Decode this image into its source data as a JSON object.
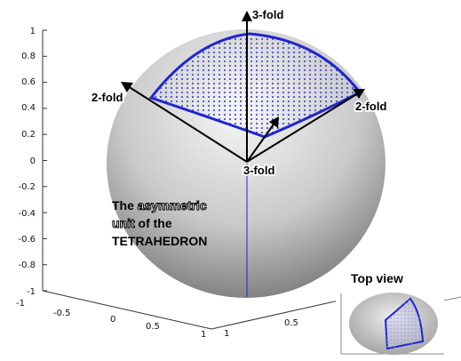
{
  "y_axis": {
    "ticks": [
      "1",
      "0.8",
      "0.6",
      "0.4",
      "0.2",
      "0",
      "-0.2",
      "-0.4",
      "-0.6",
      "-0.8",
      "-1"
    ]
  },
  "x_axis_ticks": [
    "-1",
    "-0.5",
    "0",
    "0.5",
    "1"
  ],
  "z_axis_ticks": [
    "1",
    "0.5"
  ],
  "axis_labels": {
    "top": "3-fold",
    "center": "3-fold",
    "left": "2-fold",
    "right": "2-fold"
  },
  "annotation": {
    "line1_plain": "The ",
    "line1_outlined": "asymmetric",
    "line2_outlined": "unit",
    "line2_plain": " of the",
    "line3": "TETRAHEDRON"
  },
  "inset": {
    "title": "Top view"
  },
  "colors": {
    "outline": "#1f26d0",
    "dots": "#4b52d6",
    "sphere_light": "#f7f7f7",
    "sphere_dark": "#6a6a6a"
  }
}
